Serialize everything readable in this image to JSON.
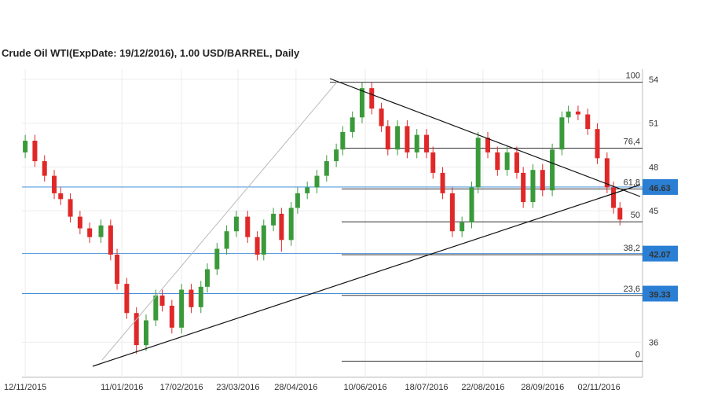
{
  "chart_data": {
    "type": "candlestick",
    "title": "Crude Oil WTI(ExpDate: 19/12/2016), 1.00 USD/BARREL, Daily",
    "x": [
      "12/11/2015",
      "18/11/2015",
      "24/11/2015",
      "30/11/2015",
      "04/12/2015",
      "10/12/2015",
      "16/12/2015",
      "22/12/2015",
      "29/12/2015",
      "04/01/2016",
      "08/01/2016",
      "14/01/2016",
      "20/01/2016",
      "26/01/2016",
      "01/02/2016",
      "05/02/2016",
      "11/02/2016",
      "17/02/2016",
      "23/02/2016",
      "29/02/2016",
      "04/03/2016",
      "10/03/2016",
      "16/03/2016",
      "22/03/2016",
      "29/03/2016",
      "04/04/2016",
      "08/04/2016",
      "14/04/2016",
      "19/04/2016",
      "25/04/2016",
      "29/04/2016",
      "05/05/2016",
      "11/05/2016",
      "17/05/2016",
      "23/05/2016",
      "27/05/2016",
      "02/06/2016",
      "08/06/2016",
      "14/06/2016",
      "20/06/2016",
      "24/06/2016",
      "30/06/2016",
      "06/07/2016",
      "12/07/2016",
      "18/07/2016",
      "22/07/2016",
      "28/07/2016",
      "03/08/2016",
      "09/08/2016",
      "15/08/2016",
      "19/08/2016",
      "25/08/2016",
      "31/08/2016",
      "06/09/2016",
      "12/09/2016",
      "16/09/2016",
      "22/09/2016",
      "28/09/2016",
      "04/10/2016",
      "10/10/2016",
      "14/10/2016",
      "20/10/2016",
      "26/10/2016",
      "01/11/2016",
      "07/11/2016",
      "11/11/2016",
      "15/11/2016"
    ],
    "open": [
      49.0,
      49.8,
      48.4,
      47.4,
      46.2,
      45.8,
      44.6,
      43.8,
      43.2,
      44.0,
      42.0,
      40.0,
      38.0,
      35.8,
      37.5,
      39.2,
      38.5,
      37.0,
      39.6,
      38.4,
      39.8,
      41.0,
      42.4,
      43.6,
      44.6,
      43.2,
      42.0,
      44.0,
      44.8,
      43.0,
      45.2,
      46.2,
      46.6,
      47.4,
      48.4,
      49.2,
      50.4,
      51.4,
      53.4,
      52.0,
      50.8,
      49.2,
      50.8,
      49.0,
      50.2,
      49.0,
      47.6,
      46.2,
      43.6,
      44.2,
      46.6,
      50.0,
      49.0,
      47.8,
      49.0,
      47.6,
      45.6,
      47.8,
      46.4,
      49.2,
      51.4,
      51.8,
      51.6,
      50.6,
      48.6,
      46.6,
      45.2
    ],
    "high": [
      50.2,
      50.2,
      48.8,
      47.8,
      46.6,
      46.2,
      45.0,
      44.2,
      44.4,
      44.4,
      42.4,
      40.4,
      38.4,
      37.9,
      39.6,
      39.6,
      38.9,
      40.0,
      40.0,
      40.2,
      41.4,
      42.8,
      44.0,
      45.0,
      45.0,
      43.6,
      44.4,
      45.2,
      45.2,
      45.6,
      46.6,
      47.0,
      47.8,
      48.8,
      49.6,
      50.8,
      51.8,
      53.8,
      53.8,
      52.4,
      51.2,
      51.2,
      51.2,
      50.6,
      50.6,
      49.4,
      48.0,
      46.6,
      44.6,
      47.0,
      50.4,
      50.4,
      49.4,
      49.4,
      49.4,
      48.0,
      48.2,
      48.2,
      49.6,
      51.8,
      52.2,
      52.2,
      52.0,
      51.0,
      49.0,
      47.0,
      45.6
    ],
    "low": [
      48.6,
      48.0,
      47.0,
      45.8,
      45.4,
      44.2,
      43.4,
      42.8,
      42.8,
      41.6,
      39.6,
      37.6,
      35.2,
      35.4,
      37.1,
      38.1,
      36.6,
      36.6,
      38.0,
      38.0,
      39.4,
      40.6,
      42.0,
      43.2,
      42.8,
      41.6,
      41.6,
      43.6,
      42.2,
      42.6,
      44.8,
      45.8,
      46.2,
      47.0,
      48.0,
      48.8,
      50.0,
      51.0,
      51.6,
      50.4,
      48.8,
      48.8,
      48.6,
      48.6,
      48.6,
      47.2,
      45.8,
      43.2,
      43.2,
      43.8,
      46.2,
      48.6,
      47.4,
      47.4,
      47.2,
      45.2,
      45.2,
      46.0,
      46.0,
      48.8,
      51.0,
      51.2,
      50.2,
      48.2,
      46.2,
      44.8,
      44.0
    ],
    "close": [
      49.8,
      48.4,
      47.4,
      46.2,
      45.8,
      44.6,
      43.8,
      43.2,
      44.0,
      42.0,
      40.0,
      38.0,
      35.8,
      37.5,
      39.2,
      38.5,
      37.0,
      39.6,
      38.4,
      39.8,
      41.0,
      42.4,
      43.6,
      44.6,
      43.2,
      42.0,
      44.0,
      44.8,
      43.0,
      45.2,
      46.2,
      46.6,
      47.4,
      48.4,
      49.2,
      50.4,
      51.4,
      53.4,
      52.0,
      50.8,
      49.2,
      50.8,
      49.0,
      50.2,
      49.0,
      47.6,
      46.2,
      43.6,
      44.2,
      46.6,
      50.0,
      49.0,
      47.8,
      49.0,
      47.6,
      45.6,
      47.8,
      46.4,
      49.2,
      51.4,
      51.8,
      51.6,
      50.6,
      48.6,
      46.6,
      45.2,
      44.4
    ],
    "up_color": "#3a9a3a",
    "down_color": "#e02828",
    "xlim": [
      "10/11/2015",
      "29/11/2016"
    ],
    "xticks": [
      "12/11/2015",
      "11/01/2016",
      "17/02/2016",
      "23/03/2016",
      "28/04/2016",
      "10/06/2016",
      "18/07/2016",
      "22/08/2016",
      "28/09/2016",
      "02/11/2016"
    ],
    "ylim": [
      33.6,
      54.7
    ],
    "yticks": [
      36,
      45,
      48,
      51,
      54
    ],
    "grid": true,
    "price_lines": [
      46.63,
      42.07,
      39.33
    ],
    "price_line_color": "#2a7fd4",
    "fibonacci": {
      "high": 53.8,
      "low": 34.7,
      "levels": [
        100,
        {
          "value": 76.4,
          "label": "76,4"
        },
        {
          "value": 61.8,
          "label": "61,8"
        },
        50,
        {
          "value": 38.2,
          "label": "38,2"
        },
        {
          "value": 23.6,
          "label": "23,6"
        },
        0
      ]
    }
  }
}
